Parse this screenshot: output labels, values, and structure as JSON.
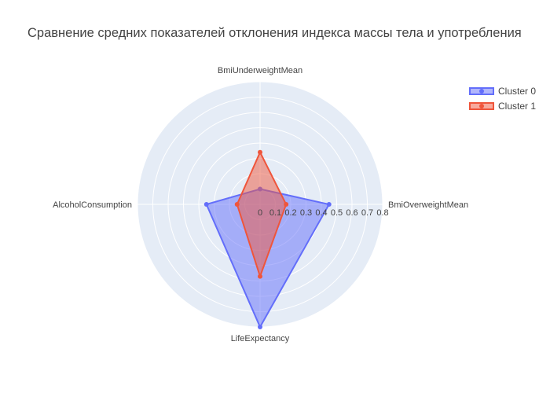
{
  "chart_data": {
    "type": "radar",
    "title": "Сравнение средних показателей отклонения индекса массы тела и употребления",
    "theta": [
      "BmiUnderweightMean",
      "BmiOverweightMean",
      "LifeExpectancy",
      "AlcoholConsumption"
    ],
    "radial_ticks": [
      "0",
      "0.1",
      "0.2",
      "0.3",
      "0.4",
      "0.5",
      "0.6",
      "0.7",
      "0.8"
    ],
    "radial_range": [
      0,
      0.8
    ],
    "series": [
      {
        "name": "Cluster 0",
        "values": [
          0.1,
          0.45,
          0.8,
          0.35
        ],
        "color": "#636efa"
      },
      {
        "name": "Cluster 1",
        "values": [
          0.34,
          0.17,
          0.47,
          0.15
        ],
        "color": "#ef553b"
      }
    ],
    "legend_position": "top-right",
    "background_color": "#e5ecf6"
  }
}
